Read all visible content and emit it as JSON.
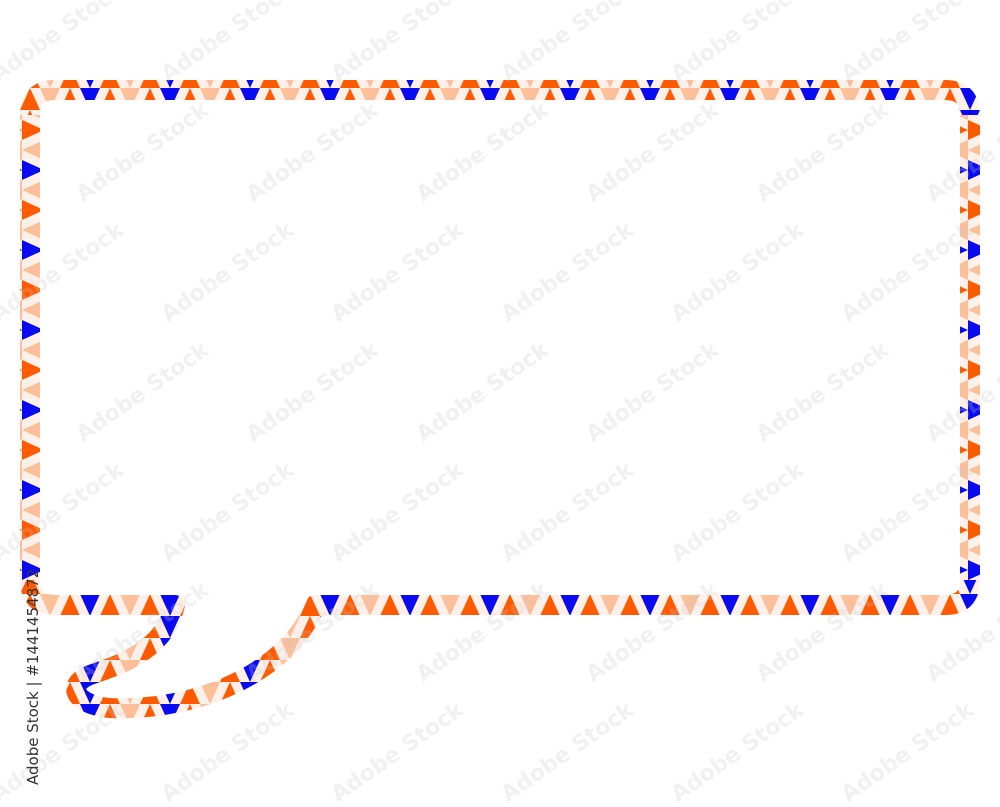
{
  "watermark": {
    "text": "Adobe Stock"
  },
  "stock_label": "Adobe Stock | #1441454872",
  "colors": {
    "blue": "#0a0af0",
    "orange": "#ff5a00",
    "peach": "#fbbf9a",
    "pale": "#fff0ea"
  }
}
